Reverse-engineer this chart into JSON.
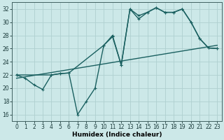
{
  "title": "",
  "xlabel": "Humidex (Indice chaleur)",
  "ylabel": "",
  "background_color": "#cce8e8",
  "grid_color": "#afd0d0",
  "line_color": "#1a6060",
  "ylim": [
    15,
    33
  ],
  "xlim": [
    -0.5,
    23.5
  ],
  "yticks": [
    16,
    18,
    20,
    22,
    24,
    26,
    28,
    30,
    32
  ],
  "xticks": [
    0,
    1,
    2,
    3,
    4,
    5,
    6,
    7,
    8,
    9,
    10,
    11,
    12,
    13,
    14,
    15,
    16,
    17,
    18,
    19,
    20,
    21,
    22,
    23
  ],
  "line1_x": [
    0,
    1,
    2,
    3,
    4,
    5,
    6,
    7,
    8,
    9,
    10,
    11,
    12,
    13,
    14,
    15,
    16,
    17,
    18,
    19,
    20,
    21,
    22,
    23
  ],
  "line1_y": [
    22,
    21.5,
    20.5,
    19.8,
    22,
    22.2,
    22.3,
    16,
    18,
    20,
    26.5,
    27.8,
    23.5,
    32,
    31,
    31.5,
    32.2,
    31.5,
    31.5,
    32,
    30,
    27.5,
    26.1,
    26
  ],
  "line2_x": [
    0,
    4,
    5,
    6,
    10,
    11,
    12,
    13,
    14,
    15,
    16,
    17,
    18,
    19,
    20,
    21,
    22,
    23
  ],
  "line2_y": [
    22,
    22,
    22.2,
    22.3,
    26.5,
    28,
    23.5,
    32,
    30.5,
    31.5,
    32.2,
    31.5,
    31.5,
    32,
    30,
    27.5,
    26.1,
    26
  ],
  "line3_x": [
    0,
    23
  ],
  "line3_y": [
    21.5,
    26.5
  ],
  "marker_size": 2.5,
  "linewidth": 1.0
}
